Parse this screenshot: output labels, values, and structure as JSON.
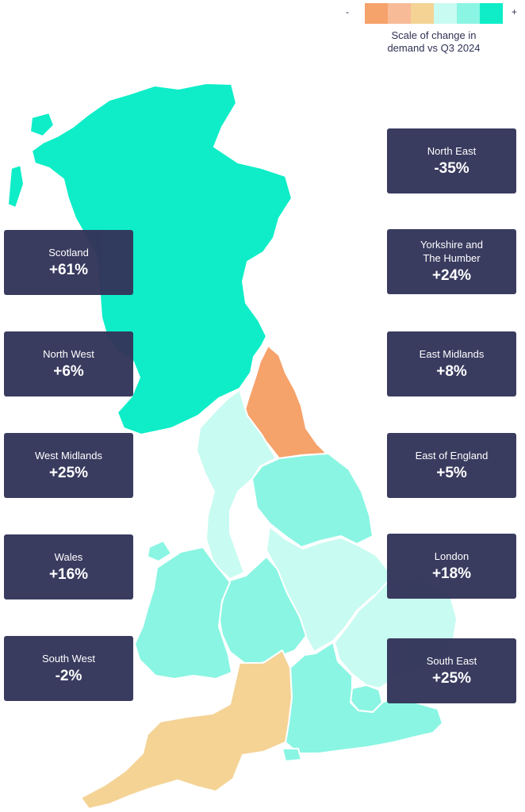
{
  "legend": {
    "minus": "-",
    "plus": "+",
    "caption": "Scale of change in\ndemand vs Q3 2024",
    "swatches": [
      "#f6a26b",
      "#f8bb98",
      "#f4d395",
      "#c8fbf1",
      "#8af5e3",
      "#0eedc8"
    ]
  },
  "regions": [
    {
      "id": "scotland",
      "name": "Scotland",
      "value": "+61%",
      "color": "#0eedc8"
    },
    {
      "id": "north-east",
      "name": "North East",
      "value": "-35%",
      "color": "#f6a26b"
    },
    {
      "id": "north-west",
      "name": "North West",
      "value": "+6%",
      "color": "#c8fbf1"
    },
    {
      "id": "yorkshire",
      "name": "Yorkshire and\nThe Humber",
      "value": "+24%",
      "color": "#8af5e3"
    },
    {
      "id": "east-midlands",
      "name": "East Midlands",
      "value": "+8%",
      "color": "#c8fbf1"
    },
    {
      "id": "west-midlands",
      "name": "West Midlands",
      "value": "+25%",
      "color": "#8af5e3"
    },
    {
      "id": "wales",
      "name": "Wales",
      "value": "+16%",
      "color": "#8af5e3"
    },
    {
      "id": "east-of-england",
      "name": "East of England",
      "value": "+5%",
      "color": "#c8fbf1"
    },
    {
      "id": "london",
      "name": "London",
      "value": "+18%",
      "color": "#8af5e3"
    },
    {
      "id": "south-west",
      "name": "South West",
      "value": "-2%",
      "color": "#f4d395"
    },
    {
      "id": "south-east",
      "name": "South East",
      "value": "+25%",
      "color": "#8af5e3"
    }
  ]
}
